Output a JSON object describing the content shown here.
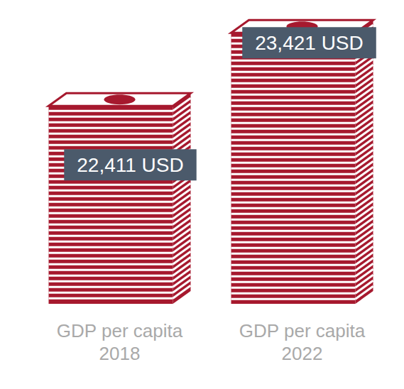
{
  "chart_data": {
    "type": "bar",
    "categories": [
      "GDP per capita 2018",
      "GDP per capita 2022"
    ],
    "values": [
      22411,
      23421
    ],
    "value_labels": [
      "22,411 USD",
      "23,421 USD"
    ],
    "data_labels": true,
    "color": "#a6192e",
    "ylim": [
      19500,
      23600
    ],
    "grid": false,
    "tick_labels": "x"
  }
}
